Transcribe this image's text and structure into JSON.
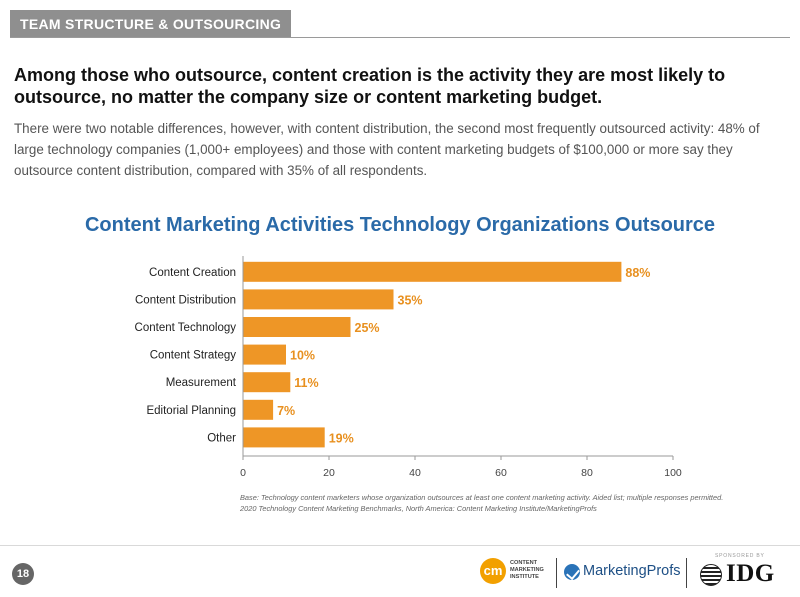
{
  "header": {
    "section_tab": "TEAM STRUCTURE & OUTSOURCING",
    "headline": "Among those who outsource, content creation is the activity they are most likely to outsource, no matter the company size or content marketing budget.",
    "intro": "There were two notable differences, however, with content distribution, the second most frequently outsourced activity: 48% of large technology companies (1,000+ employees) and those with content marketing budgets of $100,000 or more say they outsource content distribution, compared with 35% of all respondents."
  },
  "chart_data": {
    "type": "bar",
    "orientation": "horizontal",
    "title": "Content Marketing Activities Technology Organizations Outsource",
    "categories": [
      "Content Creation",
      "Content Distribution",
      "Content Technology",
      "Content Strategy",
      "Measurement",
      "Editorial Planning",
      "Other"
    ],
    "values": [
      88,
      35,
      25,
      10,
      11,
      7,
      19
    ],
    "value_labels": [
      "88%",
      "35%",
      "25%",
      "10%",
      "11%",
      "7%",
      "19%"
    ],
    "xlim": [
      0,
      100
    ],
    "xticks": [
      0,
      20,
      40,
      60,
      80,
      100
    ],
    "xtick_labels": [
      "0",
      "20",
      "40",
      "60",
      "80",
      "100"
    ],
    "grid": false,
    "legend": "none",
    "bar_color": "#ee9626",
    "label_color": "#e8901f"
  },
  "source": {
    "line1": "Base: Technology content marketers whose organization outsources at least one content marketing activity. Aided list; multiple responses permitted.",
    "line2": "2020 Technology Content Marketing Benchmarks, North America: Content Marketing Institute/MarketingProfs"
  },
  "footer": {
    "page_number": "18",
    "cmi_mark": "cm",
    "cmi_text": "CONTENT\nMARKETING\nINSTITUTE",
    "marketingprofs": "MarketingProfs",
    "sponsored_by": "SPONSORED BY",
    "idg": "IDG"
  }
}
